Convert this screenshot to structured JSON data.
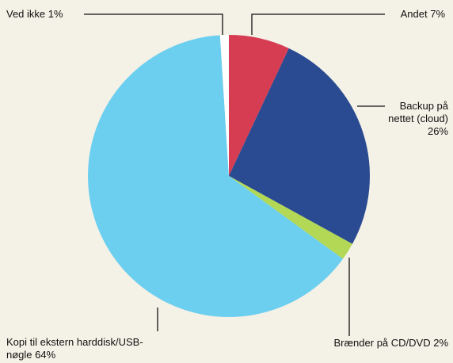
{
  "chart_data": {
    "type": "pie",
    "start_angle_deg": 0,
    "direction": "clockwise",
    "slices": [
      {
        "label": "Andet",
        "value": 7,
        "color": "#d63c52"
      },
      {
        "label": "Backup på nettet (cloud)",
        "value": 26,
        "color": "#2a4b91"
      },
      {
        "label": "Brænder på CD/DVD",
        "value": 2,
        "color": "#b2d855"
      },
      {
        "label": "Kopi til ekstern harddisk/USB-nøgle",
        "value": 64,
        "color": "#6ccff0"
      },
      {
        "label": "Ved ikke",
        "value": 1,
        "color": "#ffffff"
      }
    ],
    "annotations": {
      "andet": "Andet 7%",
      "backup_line1": "Backup på",
      "backup_line2": "nettet (cloud)",
      "backup_line3": "26%",
      "braender": "Brænder på CD/DVD 2%",
      "kopi_line1": "Kopi til ekstern harddisk/USB-",
      "kopi_line2": "nøgle 64%",
      "vedikke": "Ved ikke 1%"
    }
  }
}
